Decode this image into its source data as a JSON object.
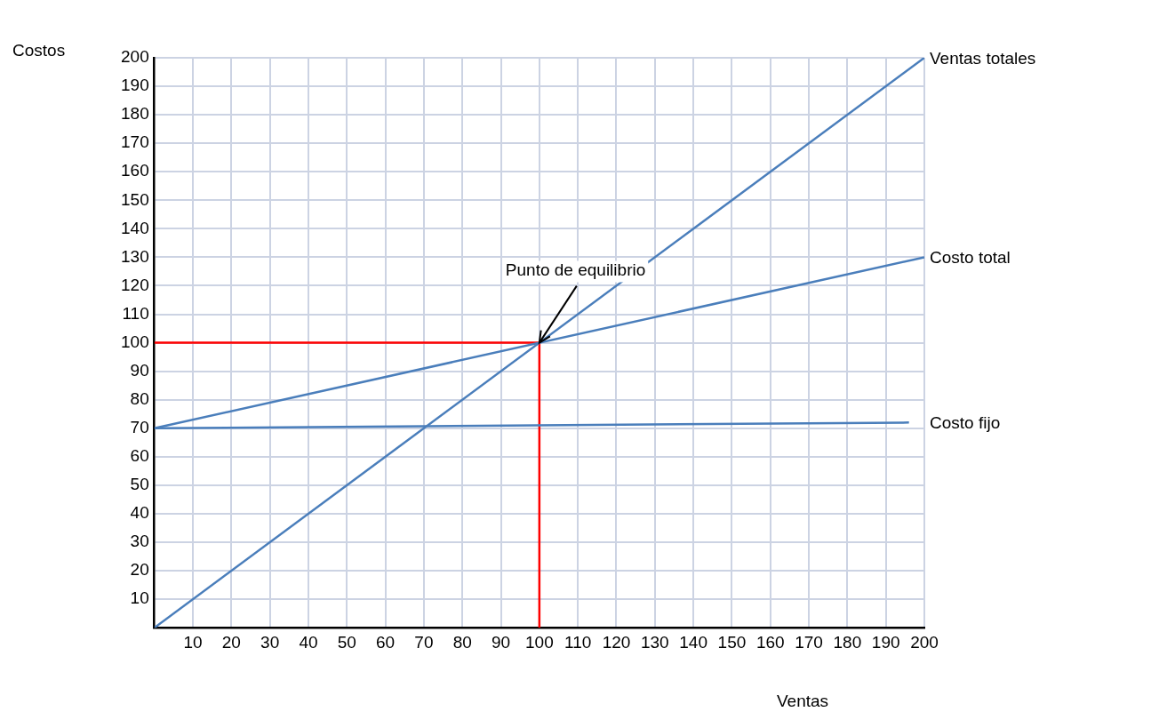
{
  "chart_data": {
    "type": "line",
    "xlabel": "Ventas",
    "ylabel": "Costos",
    "xlim": [
      0,
      200
    ],
    "xticks": [
      10,
      20,
      30,
      40,
      50,
      60,
      70,
      80,
      90,
      100,
      110,
      120,
      130,
      140,
      150,
      160,
      170,
      180,
      190,
      200
    ],
    "ylim": [
      0,
      200
    ],
    "yticks": [
      10,
      20,
      30,
      40,
      50,
      60,
      70,
      80,
      90,
      100,
      110,
      120,
      130,
      140,
      150,
      160,
      170,
      180,
      190,
      200
    ],
    "grid": true,
    "legend": false,
    "marker": "none",
    "line_style": "solid",
    "series": [
      {
        "name": "Ventas totales",
        "color": "#4a7ebb",
        "x": [
          0,
          200
        ],
        "values": [
          0,
          200
        ]
      },
      {
        "name": "Costo total",
        "color": "#4a7ebb",
        "x": [
          0,
          200
        ],
        "values": [
          70,
          130
        ]
      },
      {
        "name": "Costo fijo",
        "color": "#4a7ebb",
        "x": [
          0,
          196
        ],
        "values": [
          70,
          72
        ]
      },
      {
        "color": "#ff0000",
        "x": [
          0,
          100
        ],
        "values": [
          100,
          100
        ]
      },
      {
        "color": "#ff0000",
        "x": [
          100,
          100
        ],
        "values": [
          0,
          100
        ]
      }
    ],
    "annotations": [
      {
        "text": "Punto de equilibrio",
        "x": 100,
        "y": 100
      }
    ]
  }
}
